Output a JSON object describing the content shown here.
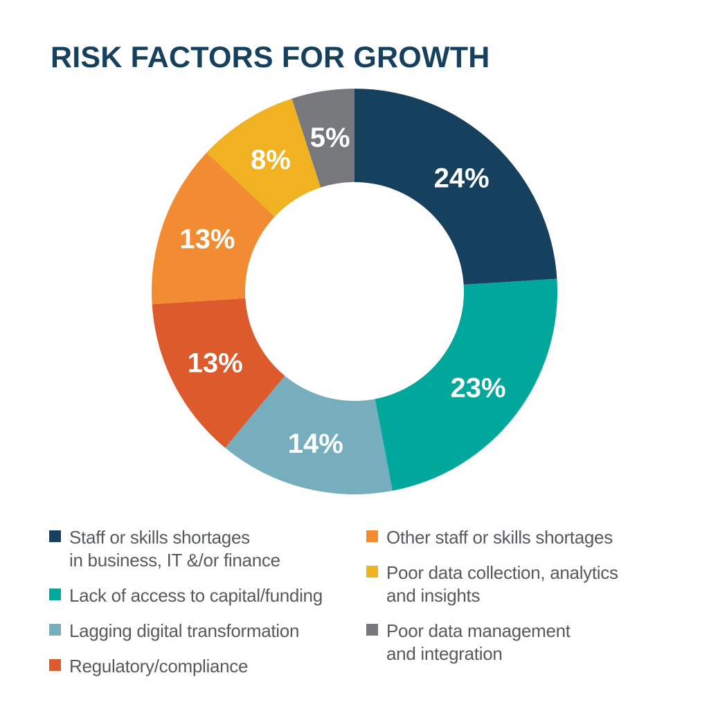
{
  "title": "RISK FACTORS FOR GROWTH",
  "theme": {
    "title_color": "#15405E",
    "legend_text_color": "#58595B",
    "label_color": "#FFFFFF",
    "background": "#FFFFFF"
  },
  "chart_data": {
    "type": "pie",
    "subtype": "donut",
    "title": "RISK FACTORS FOR GROWTH",
    "start_angle_deg": 0,
    "direction": "clockwise",
    "categories": [
      "Staff or skills shortages\nin business, IT &/or finance",
      "Lack of access to capital/funding",
      "Lagging digital transformation",
      "Regulatory/compliance",
      "Other staff or skills shortages",
      "Poor data collection, analytics\nand insights",
      "Poor data management\nand integration"
    ],
    "values": [
      24,
      23,
      14,
      13,
      13,
      8,
      5
    ],
    "value_labels": [
      "24%",
      "23%",
      "14%",
      "13%",
      "13%",
      "8%",
      "5%"
    ],
    "unit": "%",
    "colors": [
      "#15405E",
      "#00A79B",
      "#76AEBE",
      "#DC5A2B",
      "#F28C33",
      "#F1B221",
      "#77787B"
    ],
    "legend_position": "bottom",
    "legend_columns": 2
  }
}
